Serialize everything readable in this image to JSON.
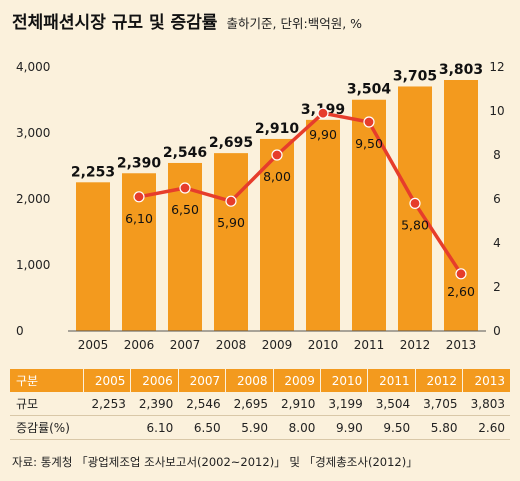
{
  "title": "전체패션시장 규모 및 증감률",
  "subtitle": "출하기준, 단위:백억원, %",
  "source": "자료: 통계청 「광업제조업 조사보고서(2002~2012)」 및 「경제총조사(2012)」",
  "colors": {
    "bar": "#f39a1e",
    "line": "#e63d2b",
    "background": "#fbf1dc",
    "header": "#f39a1e"
  },
  "chart_data": {
    "type": "bar+line",
    "categories": [
      "2005",
      "2006",
      "2007",
      "2008",
      "2009",
      "2010",
      "2011",
      "2012",
      "2013"
    ],
    "series": [
      {
        "type": "bar",
        "axis": "left",
        "values": [
          2253,
          2390,
          2546,
          2695,
          2910,
          3199,
          3504,
          3705,
          3803
        ],
        "labels": [
          "2,253",
          "2,390",
          "2,546",
          "2,695",
          "2,910",
          "3,199",
          "3,504",
          "3,705",
          "3,803"
        ]
      },
      {
        "type": "line",
        "axis": "right",
        "values": [
          null,
          6.1,
          6.5,
          5.9,
          8.0,
          9.9,
          9.5,
          5.8,
          2.6
        ],
        "labels": [
          "",
          "6,10",
          "6,50",
          "5,90",
          "8,00",
          "9,90",
          "9,50",
          "5,80",
          "2,60"
        ]
      }
    ],
    "left_axis": {
      "ylim": [
        0,
        4000
      ],
      "ticks": [
        0,
        1000,
        2000,
        3000,
        4000
      ],
      "tick_labels": [
        "0",
        "1,000",
        "2,000",
        "3,000",
        "4,000"
      ]
    },
    "right_axis": {
      "ylim": [
        0,
        12
      ],
      "ticks": [
        0,
        2,
        4,
        6,
        8,
        10,
        12
      ],
      "tick_labels": [
        "0",
        "2",
        "4",
        "6",
        "8",
        "10",
        "12"
      ]
    },
    "grid": false,
    "legend": "none"
  },
  "table": {
    "header": [
      "구분",
      "2005",
      "2006",
      "2007",
      "2008",
      "2009",
      "2010",
      "2011",
      "2012",
      "2013"
    ],
    "rows": [
      [
        "규모",
        "2,253",
        "2,390",
        "2,546",
        "2,695",
        "2,910",
        "3,199",
        "3,504",
        "3,705",
        "3,803"
      ],
      [
        "증감률(%)",
        "",
        "6.10",
        "6.50",
        "5.90",
        "8.00",
        "9.90",
        "9.50",
        "5.80",
        "2.60"
      ]
    ]
  }
}
